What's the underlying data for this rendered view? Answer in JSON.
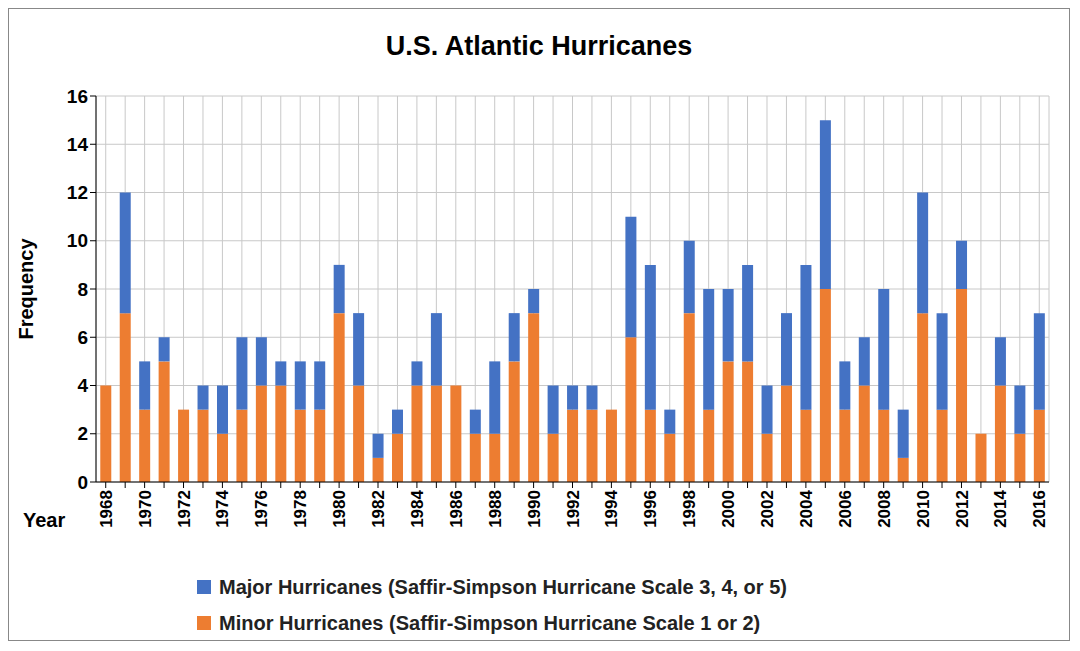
{
  "chart_data": {
    "type": "bar",
    "title": "U.S. Atlantic Hurricanes",
    "x_label": "Year",
    "y_label": "Frequency",
    "categories": [
      "1968",
      null,
      "1970",
      null,
      "1972",
      null,
      "1974",
      null,
      "1976",
      null,
      "1978",
      null,
      "1980",
      null,
      "1982",
      null,
      "1984",
      null,
      "1986",
      null,
      "1988",
      null,
      "1990",
      null,
      "1992",
      null,
      "1994",
      null,
      "1996",
      null,
      "1998",
      null,
      "2000",
      null,
      "2002",
      null,
      "2004",
      null,
      "2006",
      null,
      "2008",
      null,
      "2010",
      null,
      "2012",
      null,
      "2014",
      null,
      "2016"
    ],
    "series": [
      {
        "name": "Minor Hurricanes (Saffir-Simpson Hurricane Scale 1 or 2)",
        "color": "#ed7d31",
        "values": [
          4,
          7,
          3,
          5,
          3,
          3,
          2,
          3,
          4,
          4,
          3,
          3,
          7,
          4,
          1,
          2,
          4,
          4,
          4,
          2,
          2,
          5,
          7,
          2,
          3,
          3,
          3,
          6,
          3,
          2,
          7,
          3,
          5,
          5,
          2,
          4,
          3,
          8,
          3,
          4,
          3,
          1,
          7,
          3,
          8,
          2,
          4,
          2,
          3
        ]
      },
      {
        "name": "Major Hurricanes (Saffir-Simpson Hurricane Scale 3, 4, or 5)",
        "color": "#4472c4",
        "values": [
          0,
          5,
          2,
          1,
          0,
          1,
          2,
          3,
          2,
          1,
          2,
          2,
          2,
          3,
          1,
          1,
          1,
          3,
          0,
          1,
          3,
          2,
          1,
          2,
          1,
          1,
          0,
          5,
          6,
          1,
          3,
          5,
          3,
          4,
          2,
          3,
          6,
          7,
          2,
          2,
          5,
          2,
          5,
          4,
          2,
          0,
          2,
          2,
          4
        ]
      }
    ],
    "stacked": true,
    "ylim": [
      0,
      16
    ],
    "yticks": [
      0,
      2,
      4,
      6,
      8,
      10,
      12,
      14,
      16
    ],
    "grid": true,
    "legend": "bottom"
  }
}
